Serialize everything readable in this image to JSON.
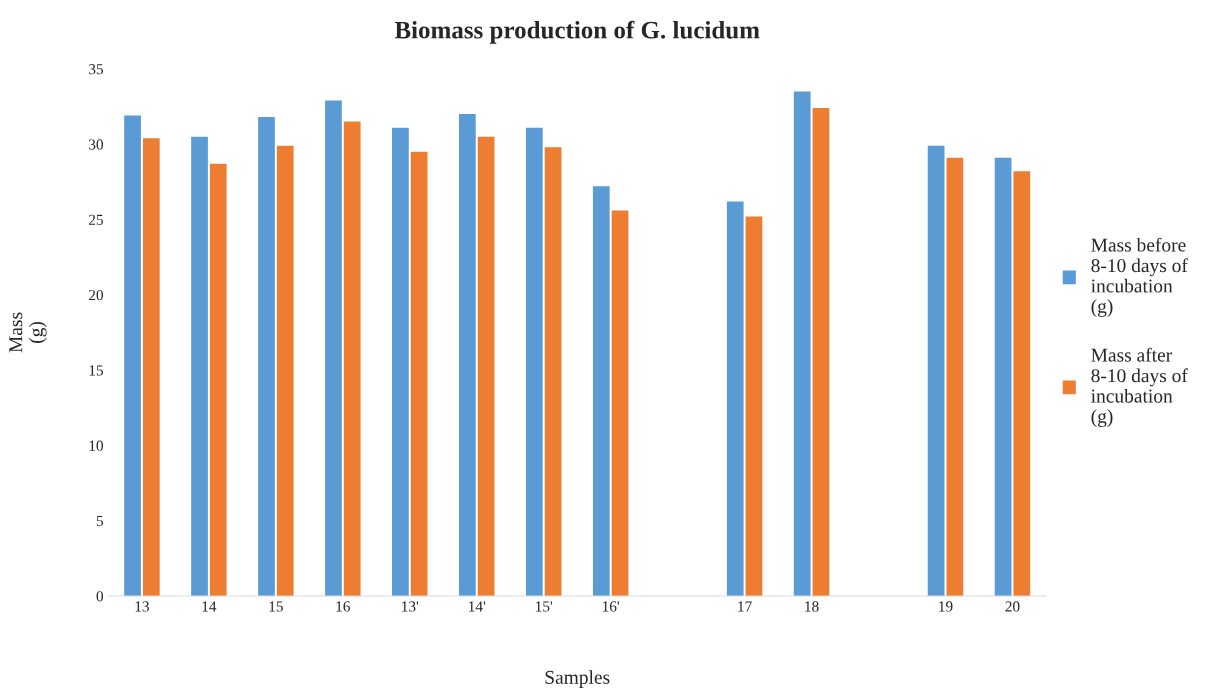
{
  "chart_data": {
    "type": "bar",
    "title": "Biomass production of G. lucidum",
    "xlabel": "Samples",
    "ylabel": "Mass (g)",
    "categories": [
      "13",
      "14",
      "15",
      "16",
      "13'",
      "14'",
      "15'",
      "16'",
      null,
      "17",
      "18",
      null,
      "19",
      "20"
    ],
    "series": [
      {
        "name": "Mass before 8-10 days of incubation (g)",
        "color": "#5b9bd5",
        "values": [
          31.9,
          30.5,
          31.8,
          32.9,
          31.1,
          32.0,
          31.1,
          27.2,
          null,
          26.2,
          33.5,
          null,
          29.9,
          29.1
        ]
      },
      {
        "name": "Mass after 8-10 days of incubation (g)",
        "color": "#ed7d31",
        "values": [
          30.4,
          28.7,
          29.9,
          31.5,
          29.5,
          30.5,
          29.8,
          25.6,
          null,
          25.2,
          32.4,
          null,
          29.1,
          28.2
        ]
      }
    ],
    "ylim": [
      0,
      35
    ],
    "yticks": [
      0,
      5,
      10,
      15,
      20,
      25,
      30,
      35
    ],
    "grid": false,
    "legend": "right"
  }
}
